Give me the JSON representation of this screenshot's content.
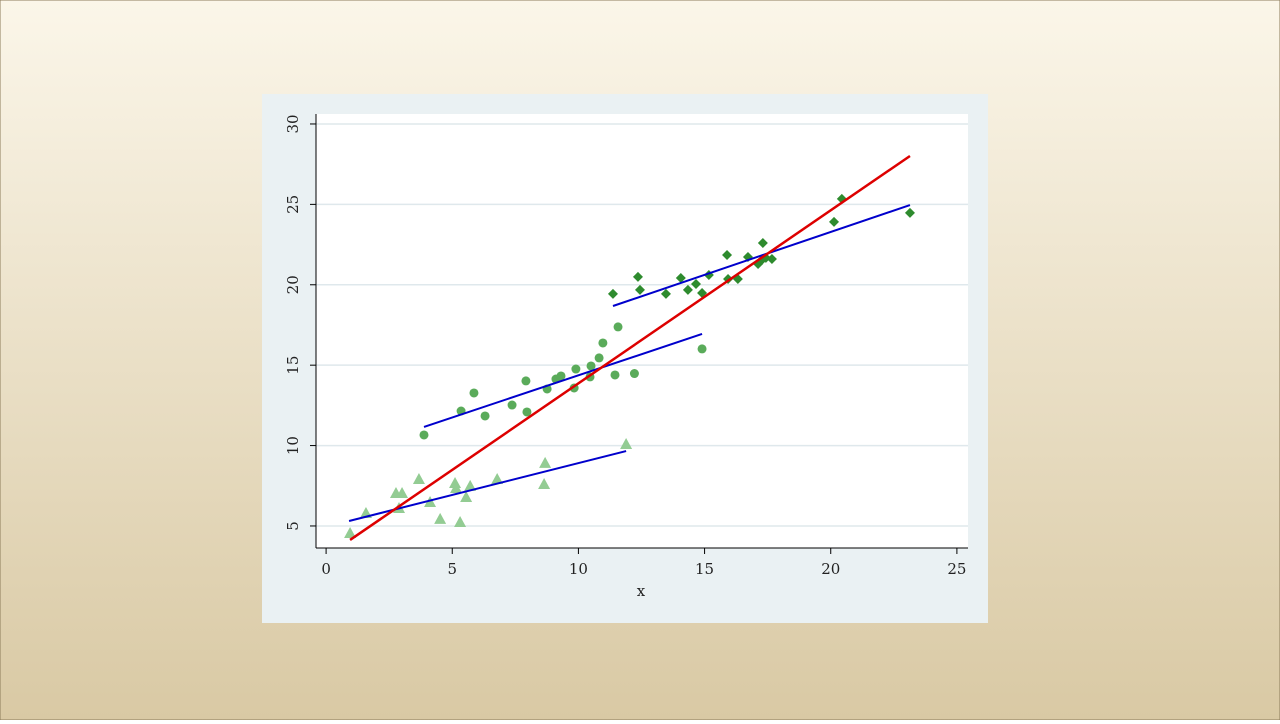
{
  "chart_data": {
    "type": "scatter",
    "x_label": "x",
    "xlim": [
      -0.4,
      25.44
    ],
    "ylim": [
      3.63,
      30.62
    ],
    "xticks": [
      0,
      5,
      10,
      15,
      20,
      25
    ],
    "yticks": [
      5,
      10,
      15,
      20,
      25,
      30
    ],
    "grid": true,
    "series": [
      {
        "color": "#93cc93",
        "marker": "triangle",
        "x": [
          0.95,
          1.58,
          2.77,
          3.01,
          2.89,
          3.68,
          4.12,
          4.52,
          5.11,
          5.15,
          5.31,
          5.55,
          5.71,
          6.78,
          8.64,
          8.68,
          11.89
        ],
        "values": [
          4.56,
          5.81,
          7.05,
          7.05,
          6.12,
          7.92,
          6.49,
          5.44,
          7.67,
          7.36,
          5.25,
          6.8,
          7.49,
          7.92,
          7.61,
          8.92,
          10.1
        ]
      },
      {
        "color": "#5aab5a",
        "marker": "circle",
        "x": [
          3.88,
          5.35,
          5.86,
          6.3,
          7.37,
          7.92,
          7.96,
          8.76,
          9.11,
          9.31,
          9.83,
          9.9,
          10.46,
          10.5,
          10.82,
          10.97,
          11.45,
          11.57,
          12.22,
          14.9
        ],
        "values": [
          10.66,
          12.15,
          13.27,
          11.84,
          12.52,
          14.02,
          12.09,
          13.52,
          14.14,
          14.33,
          13.58,
          14.76,
          14.27,
          14.95,
          15.45,
          16.38,
          14.39,
          17.38,
          14.48,
          16.01
        ]
      },
      {
        "color": "#2e8b2e",
        "marker": "diamond",
        "x": [
          11.37,
          12.36,
          12.44,
          13.47,
          14.06,
          14.34,
          14.66,
          14.9,
          15.17,
          15.89,
          15.93,
          16.32,
          16.72,
          17.12,
          17.31,
          17.27,
          17.43,
          17.67,
          20.13,
          20.44,
          23.14
        ],
        "values": [
          19.43,
          20.49,
          19.68,
          19.43,
          20.42,
          19.68,
          20.05,
          19.49,
          20.61,
          21.85,
          20.36,
          20.36,
          21.73,
          21.29,
          22.6,
          21.54,
          21.67,
          21.6,
          23.91,
          25.34,
          24.47
        ]
      },
      {
        "color": "#0000cc",
        "marker": "line",
        "x": [
          0.91,
          11.89
        ],
        "values": [
          5.31,
          9.66
        ]
      },
      {
        "color": "#0000cc",
        "marker": "line",
        "x": [
          3.88,
          14.9
        ],
        "values": [
          11.16,
          16.94
        ]
      },
      {
        "color": "#0000cc",
        "marker": "line",
        "x": [
          11.37,
          23.14
        ],
        "values": [
          18.68,
          24.96
        ]
      },
      {
        "color": "#dd0000",
        "marker": "line",
        "x": [
          0.95,
          23.14
        ],
        "values": [
          4.13,
          28.01
        ]
      }
    ]
  }
}
